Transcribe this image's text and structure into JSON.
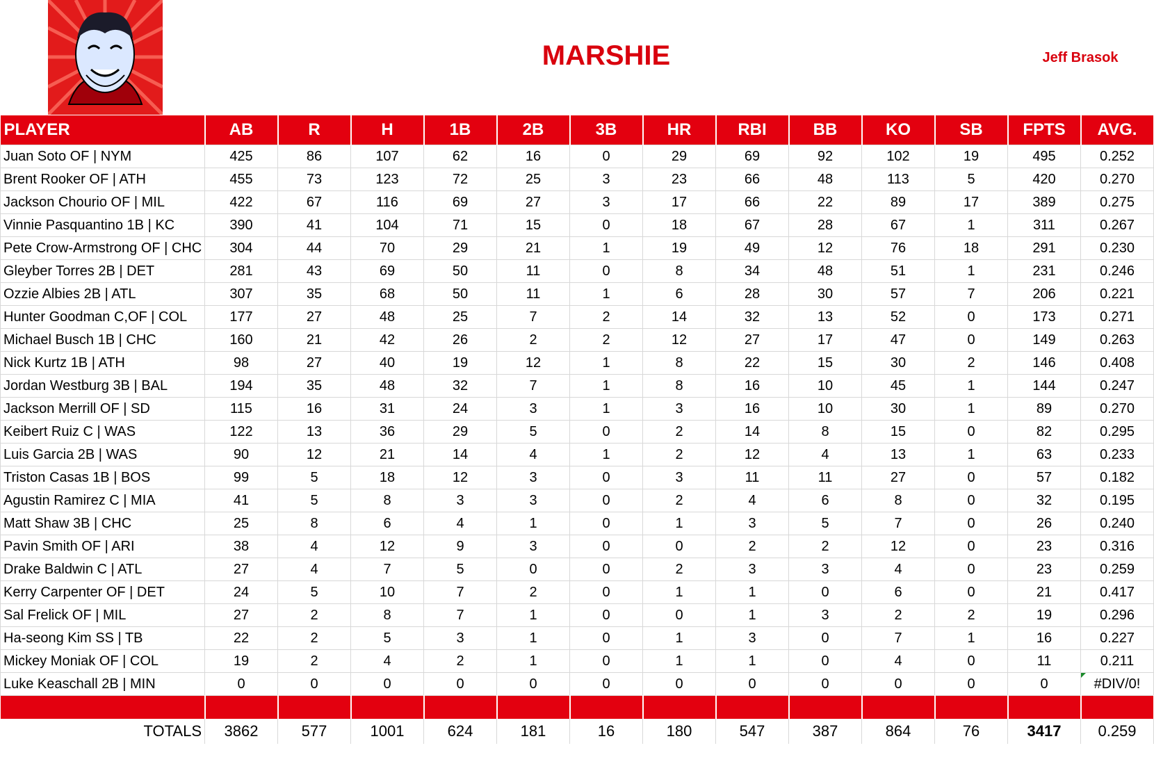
{
  "header": {
    "title": "MARSHIE",
    "owner": "Jeff Brasok"
  },
  "table": {
    "columns": [
      "PLAYER",
      "AB",
      "R",
      "H",
      "1B",
      "2B",
      "3B",
      "HR",
      "RBI",
      "BB",
      "KO",
      "SB",
      "FPTS",
      "AVG."
    ],
    "rows": [
      [
        "Juan Soto OF | NYM",
        "425",
        "86",
        "107",
        "62",
        "16",
        "0",
        "29",
        "69",
        "92",
        "102",
        "19",
        "495",
        "0.252"
      ],
      [
        "Brent Rooker OF | ATH",
        "455",
        "73",
        "123",
        "72",
        "25",
        "3",
        "23",
        "66",
        "48",
        "113",
        "5",
        "420",
        "0.270"
      ],
      [
        "Jackson Chourio OF | MIL",
        "422",
        "67",
        "116",
        "69",
        "27",
        "3",
        "17",
        "66",
        "22",
        "89",
        "17",
        "389",
        "0.275"
      ],
      [
        "Vinnie Pasquantino 1B | KC",
        "390",
        "41",
        "104",
        "71",
        "15",
        "0",
        "18",
        "67",
        "28",
        "67",
        "1",
        "311",
        "0.267"
      ],
      [
        "Pete Crow-Armstrong OF | CHC",
        "304",
        "44",
        "70",
        "29",
        "21",
        "1",
        "19",
        "49",
        "12",
        "76",
        "18",
        "291",
        "0.230"
      ],
      [
        "Gleyber Torres 2B | DET",
        "281",
        "43",
        "69",
        "50",
        "11",
        "0",
        "8",
        "34",
        "48",
        "51",
        "1",
        "231",
        "0.246"
      ],
      [
        "Ozzie Albies 2B | ATL",
        "307",
        "35",
        "68",
        "50",
        "11",
        "1",
        "6",
        "28",
        "30",
        "57",
        "7",
        "206",
        "0.221"
      ],
      [
        "Hunter Goodman C,OF | COL",
        "177",
        "27",
        "48",
        "25",
        "7",
        "2",
        "14",
        "32",
        "13",
        "52",
        "0",
        "173",
        "0.271"
      ],
      [
        "Michael Busch 1B | CHC",
        "160",
        "21",
        "42",
        "26",
        "2",
        "2",
        "12",
        "27",
        "17",
        "47",
        "0",
        "149",
        "0.263"
      ],
      [
        "Nick Kurtz 1B | ATH",
        "98",
        "27",
        "40",
        "19",
        "12",
        "1",
        "8",
        "22",
        "15",
        "30",
        "2",
        "146",
        "0.408"
      ],
      [
        "Jordan Westburg 3B | BAL",
        "194",
        "35",
        "48",
        "32",
        "7",
        "1",
        "8",
        "16",
        "10",
        "45",
        "1",
        "144",
        "0.247"
      ],
      [
        "Jackson Merrill OF | SD",
        "115",
        "16",
        "31",
        "24",
        "3",
        "1",
        "3",
        "16",
        "10",
        "30",
        "1",
        "89",
        "0.270"
      ],
      [
        "Keibert Ruiz C | WAS",
        "122",
        "13",
        "36",
        "29",
        "5",
        "0",
        "2",
        "14",
        "8",
        "15",
        "0",
        "82",
        "0.295"
      ],
      [
        "Luis Garcia 2B | WAS",
        "90",
        "12",
        "21",
        "14",
        "4",
        "1",
        "2",
        "12",
        "4",
        "13",
        "1",
        "63",
        "0.233"
      ],
      [
        "Triston Casas 1B | BOS",
        "99",
        "5",
        "18",
        "12",
        "3",
        "0",
        "3",
        "11",
        "11",
        "27",
        "0",
        "57",
        "0.182"
      ],
      [
        "Agustin Ramirez C | MIA",
        "41",
        "5",
        "8",
        "3",
        "3",
        "0",
        "2",
        "4",
        "6",
        "8",
        "0",
        "32",
        "0.195"
      ],
      [
        "Matt Shaw 3B | CHC",
        "25",
        "8",
        "6",
        "4",
        "1",
        "0",
        "1",
        "3",
        "5",
        "7",
        "0",
        "26",
        "0.240"
      ],
      [
        "Pavin Smith OF | ARI",
        "38",
        "4",
        "12",
        "9",
        "3",
        "0",
        "0",
        "2",
        "2",
        "12",
        "0",
        "23",
        "0.316"
      ],
      [
        "Drake Baldwin C | ATL",
        "27",
        "4",
        "7",
        "5",
        "0",
        "0",
        "2",
        "3",
        "3",
        "4",
        "0",
        "23",
        "0.259"
      ],
      [
        "Kerry Carpenter OF | DET",
        "24",
        "5",
        "10",
        "7",
        "2",
        "0",
        "1",
        "1",
        "0",
        "6",
        "0",
        "21",
        "0.417"
      ],
      [
        "Sal Frelick OF | MIL",
        "27",
        "2",
        "8",
        "7",
        "1",
        "0",
        "0",
        "1",
        "3",
        "2",
        "2",
        "19",
        "0.296"
      ],
      [
        "Ha-seong Kim SS | TB",
        "22",
        "2",
        "5",
        "3",
        "1",
        "0",
        "1",
        "3",
        "0",
        "7",
        "1",
        "16",
        "0.227"
      ],
      [
        "Mickey Moniak OF | COL",
        "19",
        "2",
        "4",
        "2",
        "1",
        "0",
        "1",
        "1",
        "0",
        "4",
        "0",
        "11",
        "0.211"
      ],
      [
        "Luke Keaschall 2B | MIN",
        "0",
        "0",
        "0",
        "0",
        "0",
        "0",
        "0",
        "0",
        "0",
        "0",
        "0",
        "0",
        "#DIV/0!"
      ]
    ],
    "totals": [
      "TOTALS",
      "3862",
      "577",
      "1001",
      "624",
      "181",
      "16",
      "180",
      "547",
      "387",
      "864",
      "76",
      "3417",
      "0.259"
    ]
  }
}
